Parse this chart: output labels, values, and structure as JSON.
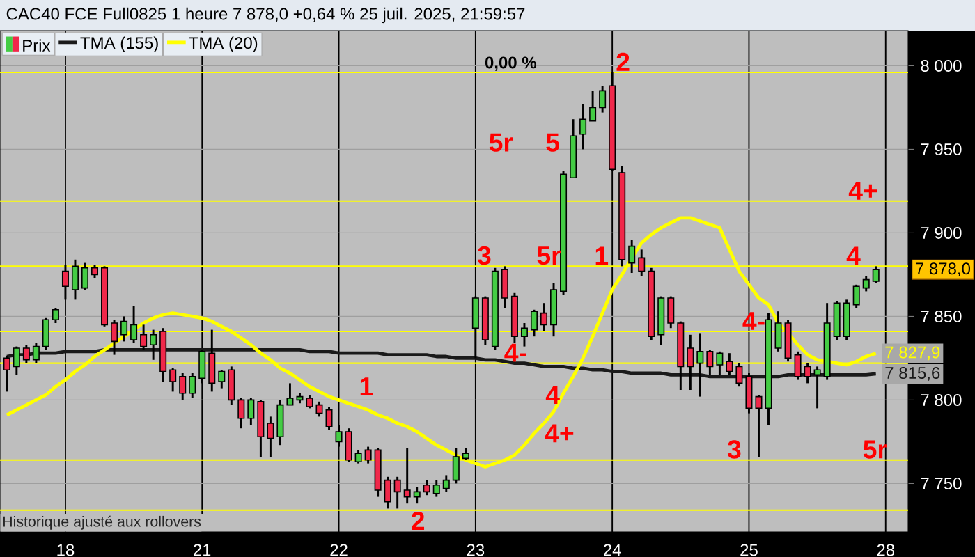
{
  "chart_data": {
    "type": "candlestick",
    "title": "CAC40 FCE Full0825 1 heure 7 878,0 +0,64 % 25 juil. 2025, 21:59:57",
    "ylim": [
      7721,
      8021
    ],
    "categories": [
      null,
      null,
      null,
      null,
      null,
      null,
      "18",
      null,
      null,
      null,
      null,
      null,
      null,
      null,
      null,
      null,
      null,
      null,
      null,
      null,
      "21",
      null,
      null,
      null,
      null,
      null,
      null,
      null,
      null,
      null,
      null,
      null,
      null,
      null,
      "22",
      null,
      null,
      null,
      null,
      null,
      null,
      null,
      null,
      null,
      null,
      null,
      null,
      null,
      "23",
      null,
      null,
      null,
      null,
      null,
      null,
      null,
      null,
      null,
      null,
      null,
      null,
      null,
      "24",
      null,
      null,
      null,
      null,
      null,
      null,
      null,
      null,
      null,
      null,
      null,
      null,
      null,
      "25",
      null,
      null,
      null,
      null,
      null,
      null,
      null,
      null,
      null,
      null,
      null,
      null,
      null,
      "28"
    ],
    "yticks": [
      {
        "value": 7750,
        "label": "7 750"
      },
      {
        "value": 7800,
        "label": "7 800"
      },
      {
        "value": 7850,
        "label": "7 850"
      },
      {
        "value": 7900,
        "label": "7 900"
      },
      {
        "value": 7950,
        "label": "7 950"
      },
      {
        "value": 8000,
        "label": "8 000"
      }
    ],
    "grid": true,
    "legend": "top left",
    "series": [
      {
        "name": "Prix",
        "ohlc": [
          [
            7825,
            7826,
            7805,
            7818
          ],
          [
            7820,
            7832,
            7815,
            7831
          ],
          [
            7831,
            7833,
            7822,
            7824
          ],
          [
            7824,
            7834,
            7822,
            7832
          ],
          [
            7832,
            7849,
            7830,
            7848
          ],
          [
            7848,
            7855,
            7846,
            7854
          ],
          [
            7877,
            7881,
            7860,
            7868
          ],
          [
            7866,
            7884,
            7860,
            7880
          ],
          [
            7867,
            7882,
            7866,
            7879
          ],
          [
            7879,
            7881,
            7873,
            7875
          ],
          [
            7879,
            7880,
            7844,
            7845
          ],
          [
            7846,
            7848,
            7827,
            7835
          ],
          [
            7839,
            7850,
            7835,
            7847
          ],
          [
            7836,
            7856,
            7834,
            7845
          ],
          [
            7839,
            7845,
            7830,
            7832
          ],
          [
            7833,
            7842,
            7824,
            7839
          ],
          [
            7841,
            7843,
            7811,
            7817
          ],
          [
            7818,
            7819,
            7805,
            7811
          ],
          [
            7814,
            7816,
            7800,
            7804
          ],
          [
            7804,
            7816,
            7801,
            7814
          ],
          [
            7813,
            7830,
            7810,
            7829
          ],
          [
            7828,
            7842,
            7805,
            7810
          ],
          [
            7811,
            7818,
            7807,
            7817
          ],
          [
            7818,
            7820,
            7797,
            7800
          ],
          [
            7800,
            7801,
            7783,
            7789
          ],
          [
            7789,
            7801,
            7785,
            7800
          ],
          [
            7799,
            7800,
            7766,
            7778
          ],
          [
            7786,
            7790,
            7766,
            7777
          ],
          [
            7778,
            7800,
            7773,
            7797
          ],
          [
            7797,
            7810,
            7797,
            7801
          ],
          [
            7800,
            7804,
            7798,
            7802
          ],
          [
            7801,
            7803,
            7795,
            7796
          ],
          [
            7797,
            7799,
            7790,
            7792
          ],
          [
            7794,
            7796,
            7782,
            7784
          ],
          [
            7775,
            7785,
            7772,
            7781
          ],
          [
            7781,
            7783,
            7763,
            7764
          ],
          [
            7763,
            7770,
            7762,
            7768
          ],
          [
            7770,
            7772,
            7762,
            7764
          ],
          [
            7770,
            7771,
            7742,
            7746
          ],
          [
            7752,
            7754,
            7735,
            7739
          ],
          [
            7752,
            7754,
            7735,
            7745
          ],
          [
            7746,
            7771,
            7738,
            7742
          ],
          [
            7742,
            7748,
            7738,
            7745
          ],
          [
            7749,
            7752,
            7743,
            7745
          ],
          [
            7744,
            7752,
            7742,
            7749
          ],
          [
            7747,
            7755,
            7745,
            7752
          ],
          [
            7752,
            7771,
            7750,
            7766
          ],
          [
            7765,
            7771,
            7764,
            7768
          ],
          [
            7843,
            7862,
            7825,
            7861
          ],
          [
            7861,
            7862,
            7833,
            7836
          ],
          [
            7832,
            7879,
            7830,
            7877
          ],
          [
            7878,
            7880,
            7855,
            7861
          ],
          [
            7862,
            7864,
            7834,
            7838
          ],
          [
            7838,
            7846,
            7832,
            7843
          ],
          [
            7842,
            7854,
            7838,
            7853
          ],
          [
            7852,
            7858,
            7841,
            7845
          ],
          [
            7845,
            7870,
            7838,
            7866
          ],
          [
            7865,
            7937,
            7863,
            7935
          ],
          [
            7933,
            7968,
            7933,
            7958
          ],
          [
            7959,
            7977,
            7950,
            7968
          ],
          [
            7967,
            7985,
            7967,
            7975
          ],
          [
            7975,
            7988,
            7972,
            7985
          ],
          [
            7988,
            7996,
            7937,
            7938
          ],
          [
            7936,
            7940,
            7880,
            7884
          ],
          [
            7882,
            7896,
            7876,
            7892
          ],
          [
            7885,
            7890,
            7874,
            7877
          ],
          [
            7877,
            7879,
            7836,
            7838
          ],
          [
            7839,
            7862,
            7833,
            7861
          ],
          [
            7861,
            7862,
            7843,
            7846
          ],
          [
            7846,
            7847,
            7806,
            7820
          ],
          [
            7831,
            7839,
            7806,
            7820
          ],
          [
            7822,
            7840,
            7802,
            7829
          ],
          [
            7829,
            7830,
            7815,
            7820
          ],
          [
            7821,
            7829,
            7815,
            7828
          ],
          [
            7823,
            7828,
            7815,
            7817
          ],
          [
            7820,
            7822,
            7808,
            7810
          ],
          [
            7814,
            7816,
            7792,
            7795
          ],
          [
            7802,
            7803,
            7766,
            7795
          ],
          [
            7795,
            7852,
            7785,
            7848
          ],
          [
            7831,
            7853,
            7829,
            7846
          ],
          [
            7846,
            7848,
            7823,
            7825
          ],
          [
            7827,
            7829,
            7812,
            7814
          ],
          [
            7820,
            7822,
            7810,
            7814
          ],
          [
            7815,
            7820,
            7795,
            7818
          ],
          [
            7814,
            7858,
            7812,
            7846
          ],
          [
            7838,
            7859,
            7836,
            7858
          ],
          [
            7838,
            7860,
            7836,
            7858
          ],
          [
            7857,
            7869,
            7855,
            7868
          ],
          [
            7867,
            7874,
            7865,
            7872
          ],
          [
            7871,
            7880,
            7870,
            7878
          ],
          null
        ],
        "colors": [
          "#f0284a",
          "#44cc44",
          "#f0284a",
          "#44cc44",
          "#44cc44",
          "#44cc44",
          "#f0284a",
          "#44cc44",
          "#44cc44",
          "#f0284a",
          "#f0284a",
          "#f0284a",
          "#44cc44",
          "#44cc44",
          "#f0284a",
          "#44cc44",
          "#f0284a",
          "#f0284a",
          "#f0284a",
          "#44cc44",
          "#44cc44",
          "#f0284a",
          "#44cc44",
          "#f0284a",
          "#f0284a",
          "#44cc44",
          "#f0284a",
          "#f0284a",
          "#44cc44",
          "#44cc44",
          "#44cc44",
          "#f0284a",
          "#f0284a",
          "#f0284a",
          "#44cc44",
          "#f0284a",
          "#44cc44",
          "#f0284a",
          "#f0284a",
          "#f0284a",
          "#f0284a",
          "#f0284a",
          "#44cc44",
          "#f0284a",
          "#44cc44",
          "#44cc44",
          "#44cc44",
          "#44cc44",
          "#44cc44",
          "#f0284a",
          "#44cc44",
          "#f0284a",
          "#f0284a",
          "#44cc44",
          "#44cc44",
          "#f0284a",
          "#44cc44",
          "#44cc44",
          "#44cc44",
          "#44cc44",
          "#44cc44",
          "#44cc44",
          "#f0284a",
          "#f0284a",
          "#44cc44",
          "#f0284a",
          "#f0284a",
          "#44cc44",
          "#f0284a",
          "#f0284a",
          "#f0284a",
          "#44cc44",
          "#f0284a",
          "#44cc44",
          "#f0284a",
          "#f0284a",
          "#f0284a",
          "#f0284a",
          "#44cc44",
          "#44cc44",
          "#f0284a",
          "#f0284a",
          "#f0284a",
          "#44cc44",
          "#44cc44",
          "#44cc44",
          "#44cc44",
          "#44cc44",
          "#44cc44",
          "#44cc44",
          null
        ],
        "value_labels": [
          null,
          null,
          null,
          null,
          null,
          null,
          null,
          null,
          null,
          null,
          null,
          null,
          null,
          null,
          null,
          null,
          null,
          null,
          null,
          null,
          null,
          null,
          null,
          null,
          null,
          null,
          null,
          null,
          null,
          null,
          null,
          null,
          null,
          null,
          null,
          null,
          null,
          null,
          null,
          null,
          null,
          null,
          null,
          null,
          null,
          null,
          null,
          null,
          null,
          null,
          null,
          null,
          null,
          null,
          null,
          null,
          null,
          null,
          null,
          null,
          null,
          null,
          null,
          null,
          null,
          null,
          null,
          null,
          null,
          null,
          null,
          null,
          null,
          null,
          null,
          null,
          null,
          null,
          null,
          null,
          null,
          null,
          null,
          null,
          null,
          null,
          null,
          null,
          null,
          "7 878,0",
          null
        ]
      },
      {
        "name": "TMA (155)",
        "type": "line",
        "color": "#1a1a1a",
        "values": [
          7826,
          7827,
          7827,
          7828,
          7828,
          7828,
          7829,
          7829,
          7829,
          7829,
          7830,
          7830,
          7830,
          7830,
          7830,
          7830,
          7830,
          7830,
          7830,
          7830,
          7830,
          7830,
          7830,
          7830,
          7830,
          7830,
          7830,
          7830,
          7830,
          7830,
          7830,
          7829,
          7829,
          7829,
          7828,
          7828,
          7828,
          7828,
          7828,
          7827,
          7827,
          7827,
          7827,
          7827,
          7826,
          7826,
          7825,
          7825,
          7825,
          7824,
          7824,
          7823,
          7822,
          7822,
          7821,
          7820,
          7820,
          7820,
          7819,
          7819,
          7818,
          7818,
          7817,
          7817,
          7816,
          7816,
          7816,
          7816,
          7815,
          7815,
          7815,
          7815,
          7814,
          7814,
          7814,
          7814,
          7814,
          7814,
          7814,
          7814,
          7815,
          7815,
          7815,
          7815,
          7815,
          7815,
          7815,
          7815,
          7815,
          7815.6,
          null
        ],
        "value_labels": [
          null,
          null,
          null,
          null,
          null,
          null,
          null,
          null,
          null,
          null,
          null,
          null,
          null,
          null,
          null,
          null,
          null,
          null,
          null,
          null,
          null,
          null,
          null,
          null,
          null,
          null,
          null,
          null,
          null,
          null,
          null,
          null,
          null,
          null,
          null,
          null,
          null,
          null,
          null,
          null,
          null,
          null,
          null,
          null,
          null,
          null,
          null,
          null,
          null,
          null,
          null,
          null,
          null,
          null,
          null,
          null,
          null,
          null,
          null,
          null,
          null,
          null,
          null,
          null,
          null,
          null,
          null,
          null,
          null,
          null,
          null,
          null,
          null,
          null,
          null,
          null,
          null,
          null,
          null,
          null,
          null,
          null,
          null,
          null,
          null,
          null,
          null,
          null,
          null,
          "7 815,6",
          null
        ]
      },
      {
        "name": "TMA (20)",
        "type": "line",
        "color": "#ffff00",
        "values": [
          7791,
          7794,
          7797,
          7800,
          7803,
          7808,
          7812,
          7817,
          7821,
          7826,
          7830,
          7834,
          7838,
          7842,
          7846,
          7849,
          7851,
          7852,
          7851,
          7850,
          7849,
          7847,
          7844,
          7841,
          7837,
          7833,
          7828,
          7824,
          7819,
          7816,
          7812,
          7808,
          7805,
          7802,
          7800,
          7798,
          7796,
          7794,
          7791,
          7789,
          7786,
          7784,
          7781,
          7777,
          7773,
          7770,
          7767,
          7764,
          7762,
          7760,
          7762,
          7764,
          7767,
          7773,
          7780,
          7786,
          7793,
          7804,
          7814,
          7825,
          7838,
          7852,
          7866,
          7875,
          7885,
          7894,
          7899,
          7903,
          7906,
          7909,
          7909,
          7907,
          7905,
          7903,
          7890,
          7877,
          7869,
          7861,
          7857,
          7846,
          7840,
          7833,
          7827,
          7824,
          7823,
          7822,
          7821,
          7823,
          7826,
          7827.9,
          null
        ],
        "value_labels": [
          null,
          null,
          null,
          null,
          null,
          null,
          null,
          null,
          null,
          null,
          null,
          null,
          null,
          null,
          null,
          null,
          null,
          null,
          null,
          null,
          null,
          null,
          null,
          null,
          null,
          null,
          null,
          null,
          null,
          null,
          null,
          null,
          null,
          null,
          null,
          null,
          null,
          null,
          null,
          null,
          null,
          null,
          null,
          null,
          null,
          null,
          null,
          null,
          null,
          null,
          null,
          null,
          null,
          null,
          null,
          null,
          null,
          null,
          null,
          null,
          null,
          null,
          null,
          null,
          null,
          null,
          null,
          null,
          null,
          null,
          null,
          null,
          null,
          null,
          null,
          null,
          null,
          null,
          null,
          null,
          null,
          null,
          null,
          null,
          null,
          null,
          null,
          null,
          null,
          "7 827,9",
          null
        ]
      }
    ],
    "ref_lines": [
      {
        "axis": "y",
        "value": 7996,
        "color": "#ffff00"
      },
      {
        "axis": "y",
        "value": 7919,
        "color": "#ffff00"
      },
      {
        "axis": "y",
        "value": 7880,
        "color": "#ffff00"
      },
      {
        "axis": "y",
        "value": 7841,
        "color": "#ffff00"
      },
      {
        "axis": "y",
        "value": 7822,
        "color": "#ffff00"
      },
      {
        "axis": "y",
        "value": 7764,
        "color": "#ffff00"
      },
      {
        "axis": "y",
        "value": 7734,
        "color": "#ffff00"
      }
    ],
    "annotations": [
      {
        "text": "0,00 %",
        "y": 7996
      },
      "5r",
      "5",
      {
        "text": "2",
        "y": 7996
      },
      {
        "text": "4+",
        "y": 7919
      },
      {
        "text": "3",
        "y": 7880
      },
      {
        "text": "5r",
        "y": 7880
      },
      {
        "text": "1",
        "y": 7880
      },
      {
        "text": "4",
        "y": 7880
      },
      {
        "text": "4-",
        "y": 7822
      },
      {
        "text": "4-",
        "y": 7841
      },
      {
        "text": "4",
        "y": 7803
      },
      "4+",
      {
        "text": "3",
        "y": 7764
      },
      {
        "text": "5r",
        "y": 7764
      },
      "1",
      {
        "text": "2",
        "y": 7734
      },
      "Historique ajusté aux rollovers"
    ]
  }
}
